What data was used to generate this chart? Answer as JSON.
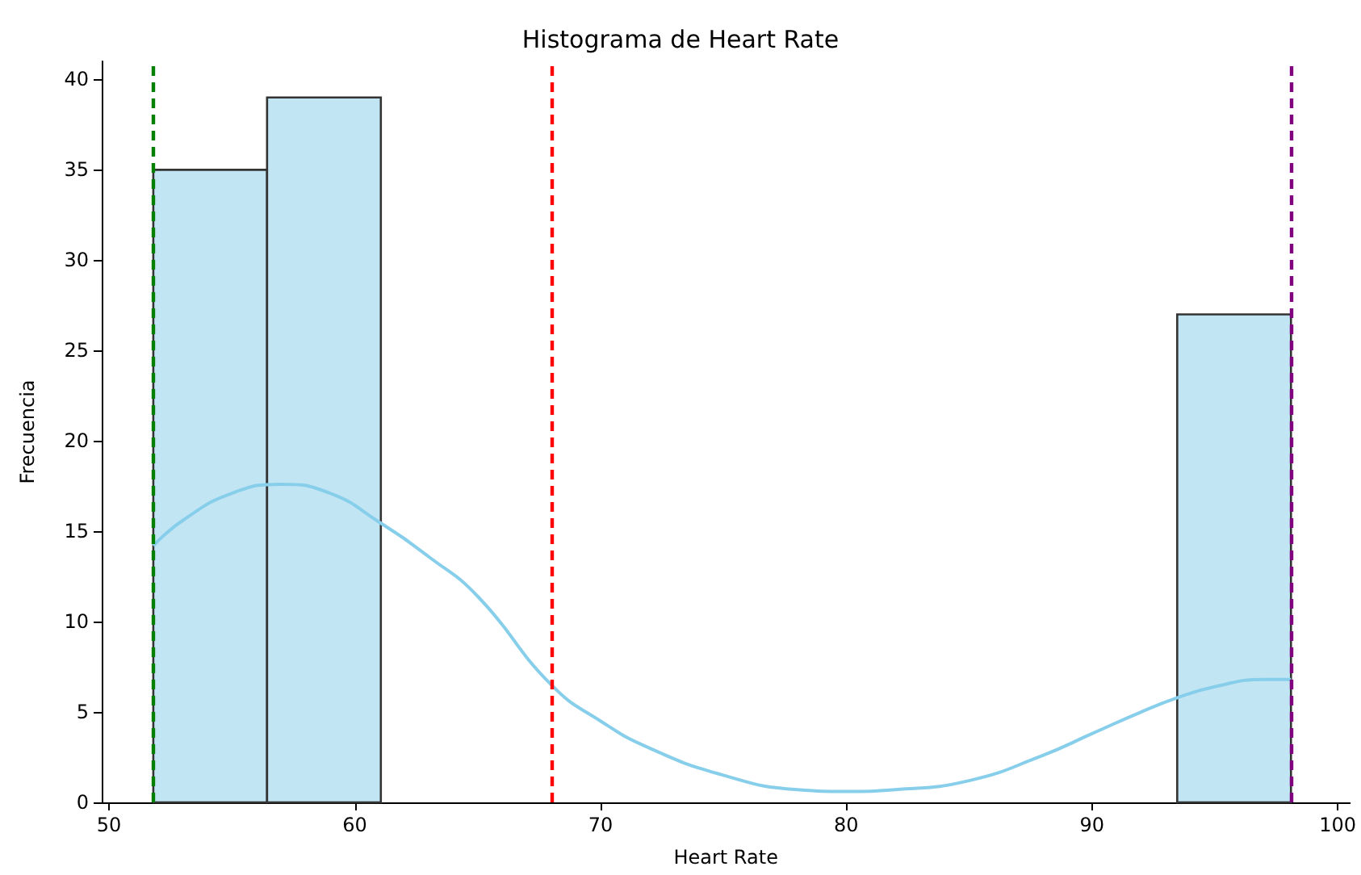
{
  "chart_data": {
    "type": "histogram",
    "title": "Histograma de Heart Rate",
    "xlabel": "Heart Rate",
    "ylabel": "Frecuencia",
    "bins": [
      51.8,
      56.43,
      61.06,
      65.69,
      70.32,
      74.95,
      79.58,
      84.21,
      88.84,
      93.47,
      98.1
    ],
    "values": [
      35,
      39,
      0,
      0,
      0,
      0,
      0,
      0,
      0,
      27
    ],
    "color": "#c2e5f4",
    "series": [
      {
        "type": "line",
        "color": "#87ceeb",
        "x": [
          51.8,
          53,
          55,
          57,
          59,
          61,
          63,
          65,
          68,
          70,
          72,
          75,
          78,
          80,
          82,
          85,
          88,
          90,
          92,
          93.5,
          95,
          97,
          98.1
        ],
        "values": [
          14.2,
          15.6,
          17.1,
          17.6,
          17.1,
          15.5,
          13.6,
          11.4,
          6.5,
          4.5,
          3.0,
          1.5,
          0.7,
          0.6,
          0.7,
          1.2,
          2.6,
          3.8,
          5.0,
          5.8,
          6.4,
          6.8,
          6.8
        ]
      }
    ],
    "ref_lines": [
      {
        "axis": "x",
        "value": 51.8,
        "color": "#008000",
        "line_style": "dashed"
      },
      {
        "axis": "x",
        "value": 68.0,
        "color": "#ff0000",
        "line_style": "dashed"
      },
      {
        "axis": "x",
        "value": 98.1,
        "color": "#800080",
        "line_style": "dashed"
      }
    ],
    "xlim": [
      49.7,
      100.5
    ],
    "xticks": [
      50,
      60,
      70,
      80,
      90,
      100
    ],
    "ylim": [
      0,
      41
    ],
    "yticks": [
      0,
      5,
      10,
      15,
      20,
      25,
      30,
      35,
      40
    ],
    "grid": false
  }
}
